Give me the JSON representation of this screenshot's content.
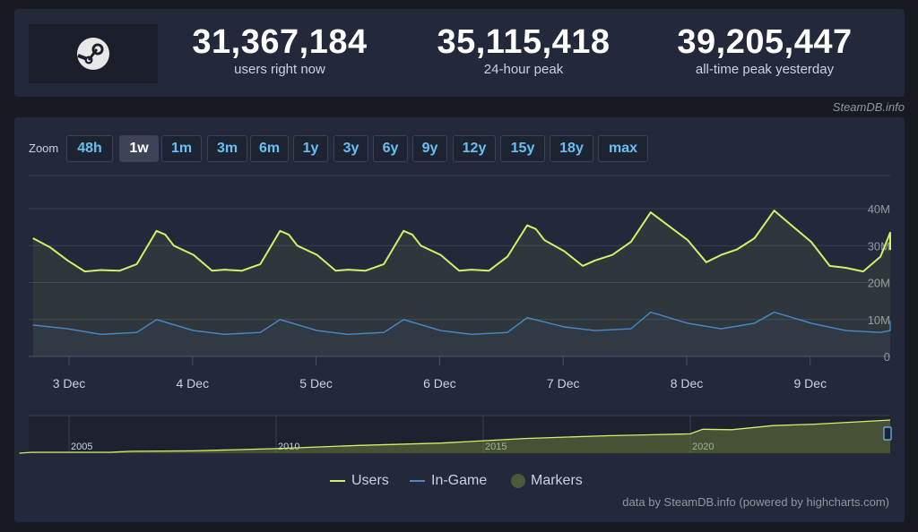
{
  "stats": [
    {
      "value": "31,367,184",
      "label": "users right now"
    },
    {
      "value": "35,115,418",
      "label": "24-hour peak"
    },
    {
      "value": "39,205,447",
      "label": "all-time peak yesterday"
    }
  ],
  "credit": "SteamDB.info",
  "zoom": {
    "label": "Zoom",
    "buttons": [
      "48h",
      "1w",
      "1m",
      "3m",
      "6m",
      "1y",
      "3y",
      "6y",
      "9y",
      "12y",
      "15y",
      "18y",
      "max"
    ],
    "active": "1w"
  },
  "legend": [
    {
      "label": "Users",
      "color": "#d4f06a"
    },
    {
      "label": "In-Game",
      "color": "#4a8ac9"
    },
    {
      "label": "Markers",
      "color": "#4b5a3a"
    }
  ],
  "footer": "data by SteamDB.info (powered by highcharts.com)",
  "chart_data": {
    "type": "line",
    "title": "",
    "xlabel": "",
    "ylabel": "",
    "x_tick_labels": [
      "3 Dec",
      "4 Dec",
      "5 Dec",
      "6 Dec",
      "7 Dec",
      "8 Dec",
      "9 Dec"
    ],
    "y_tick_labels": [
      "0",
      "10M",
      "20M",
      "30M",
      "40M"
    ],
    "ylim": [
      0,
      40000000
    ],
    "grid": true,
    "x_unit": "day",
    "x_start": "2 Dec 17:00",
    "series": [
      {
        "name": "Users",
        "color": "#d4f06a",
        "x": [
          0,
          0.14,
          0.28,
          0.42,
          0.55,
          0.7,
          0.84,
          1.0,
          1.07,
          1.14,
          1.3,
          1.45,
          1.55,
          1.69,
          1.84,
          2.0,
          2.07,
          2.14,
          2.3,
          2.45,
          2.55,
          2.69,
          2.84,
          3.0,
          3.07,
          3.14,
          3.3,
          3.45,
          3.55,
          3.69,
          3.84,
          4.0,
          4.07,
          4.14,
          4.3,
          4.45,
          4.55,
          4.69,
          4.84,
          5.0,
          5.14,
          5.3,
          5.45,
          5.57,
          5.7,
          5.84,
          6.0,
          6.14,
          6.3,
          6.45,
          6.58,
          6.72,
          6.86,
          7.0,
          7.14,
          7.28,
          7.42,
          7.56,
          7.64
        ],
        "values": [
          32000000,
          29500000,
          26000000,
          23000000,
          23400000,
          23200000,
          25000000,
          34000000,
          33000000,
          30000000,
          27500000,
          23200000,
          23500000,
          23200000,
          25000000,
          34000000,
          33000000,
          30000000,
          27500000,
          23200000,
          23500000,
          23200000,
          25000000,
          34000000,
          33000000,
          30000000,
          27500000,
          23200000,
          23500000,
          23200000,
          27000000,
          35500000,
          34500000,
          31500000,
          28500000,
          24500000,
          26000000,
          27500000,
          31000000,
          39000000,
          35500000,
          31500000,
          25500000,
          27500000,
          29000000,
          32000000,
          39500000,
          35500000,
          31000000,
          24500000,
          24000000,
          23000000,
          27000000,
          33500000,
          32000000,
          30000000,
          29000000,
          33000000,
          31500000
        ]
      },
      {
        "name": "In-Game",
        "color": "#4a8ac9",
        "x": [
          0,
          0.28,
          0.55,
          0.84,
          1.0,
          1.3,
          1.55,
          1.84,
          2.0,
          2.3,
          2.55,
          2.84,
          3.0,
          3.3,
          3.55,
          3.84,
          4.0,
          4.3,
          4.55,
          4.84,
          5.0,
          5.3,
          5.57,
          5.84,
          6.0,
          6.3,
          6.58,
          6.86,
          7.0,
          7.14,
          7.3,
          7.45,
          7.64
        ],
        "values": [
          8500000,
          7500000,
          6000000,
          6500000,
          10000000,
          7000000,
          6000000,
          6500000,
          10000000,
          7000000,
          6000000,
          6500000,
          10000000,
          7000000,
          6000000,
          6500000,
          10500000,
          8000000,
          7000000,
          7500000,
          12000000,
          9000000,
          7500000,
          9000000,
          12000000,
          9000000,
          7000000,
          6500000,
          7000000,
          7500000,
          8000000,
          9500000,
          9000000
        ]
      }
    ],
    "navigator": {
      "type": "area",
      "x_tick_labels": [
        "2005",
        "2010",
        "2015",
        "2020"
      ],
      "x": [
        2003.8,
        2004.1,
        2006.0,
        2006.5,
        2008.0,
        2010.0,
        2012.0,
        2014.0,
        2015.0,
        2016.0,
        2018.0,
        2019.0,
        2020.0,
        2020.3,
        2021.0,
        2022.0,
        2023.0,
        2024.0,
        2024.9
      ],
      "values": [
        0,
        1000000,
        1000000,
        2000000,
        2500000,
        5000000,
        8500000,
        11000000,
        13500000,
        16000000,
        19000000,
        20000000,
        21000000,
        26000000,
        25500000,
        30000000,
        31500000,
        34000000,
        36000000
      ]
    }
  }
}
